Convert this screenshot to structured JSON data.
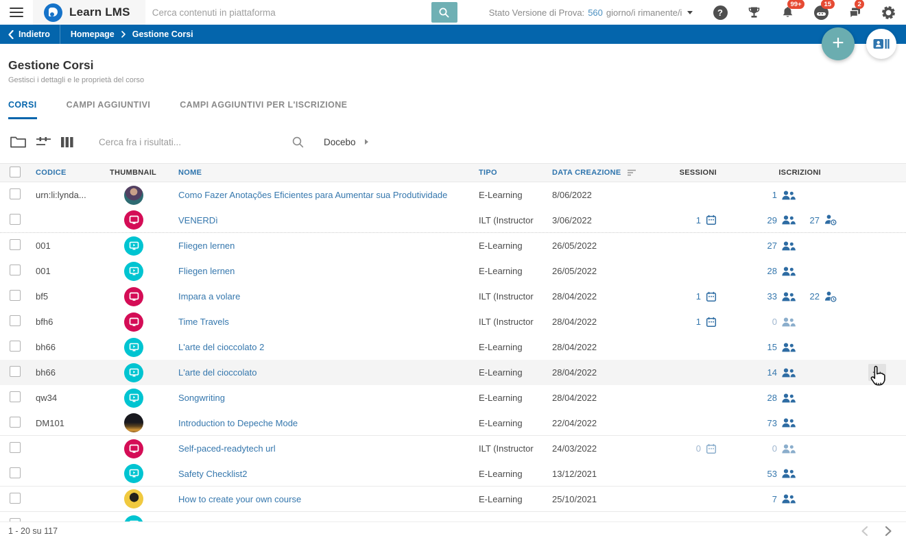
{
  "topbar": {
    "logo_text": "Learn LMS",
    "search_placeholder": "Cerca contenuti in piattaforma",
    "trial": {
      "prefix": "Stato Versione di Prova:",
      "days": "560",
      "suffix": "giorno/i rimanente/i"
    },
    "badges": {
      "notifications": "99+",
      "assistant": "15",
      "messages": "2"
    },
    "help_glyph": "?"
  },
  "breadcrumb": {
    "back": "Indietro",
    "items": [
      "Homepage",
      "Gestione Corsi"
    ]
  },
  "page": {
    "title": "Gestione Corsi",
    "subtitle": "Gestisci i dettagli e le proprietà del corso"
  },
  "tabs": [
    {
      "label": "CORSI",
      "active": true
    },
    {
      "label": "CAMPI AGGIUNTIVI",
      "active": false
    },
    {
      "label": "CAMPI AGGIUNTIVI PER L'ISCRIZIONE",
      "active": false
    }
  ],
  "toolbar": {
    "search_placeholder": "Cerca fra i risultati...",
    "folder": "Docebo"
  },
  "table": {
    "columns": [
      {
        "label": "CODICE",
        "accent": true
      },
      {
        "label": "THUMBNAIL",
        "accent": false
      },
      {
        "label": "NOME",
        "accent": true
      },
      {
        "label": "TIPO",
        "accent": true
      },
      {
        "label": "DATA CREAZIONE",
        "accent": true,
        "sorted": true
      },
      {
        "label": "SESSIONI",
        "accent": false
      },
      {
        "label": "ISCRIZIONI",
        "accent": false
      }
    ],
    "rows": [
      {
        "code": "urn:li:lynda...",
        "thumb": "photo-woman",
        "name": "Como Fazer Anotações Eficientes para Aumentar sua Produtividade",
        "tipo": "E-Learning",
        "created": "8/06/2022",
        "sessions": null,
        "enrollments": 1,
        "waiting": null
      },
      {
        "code": "",
        "thumb": "ilt",
        "name": "VENERDì",
        "tipo": "ILT (Instructor",
        "created": "3/06/2022",
        "sessions": 1,
        "enrollments": 29,
        "waiting": 27,
        "divider": "dotted"
      },
      {
        "code": "001",
        "thumb": "elearning",
        "name": "Fliegen lernen",
        "tipo": "E-Learning",
        "created": "26/05/2022",
        "sessions": null,
        "enrollments": 27,
        "waiting": null
      },
      {
        "code": "001",
        "thumb": "elearning",
        "name": "Fliegen lernen",
        "tipo": "E-Learning",
        "created": "26/05/2022",
        "sessions": null,
        "enrollments": 28,
        "waiting": null
      },
      {
        "code": "bf5",
        "thumb": "ilt",
        "name": "Impara a volare",
        "tipo": "ILT (Instructor",
        "created": "28/04/2022",
        "sessions": 1,
        "enrollments": 33,
        "waiting": 22
      },
      {
        "code": "bfh6",
        "thumb": "ilt",
        "name": "Time Travels",
        "tipo": "ILT (Instructor",
        "created": "28/04/2022",
        "sessions": 1,
        "enrollments": 0,
        "waiting": null
      },
      {
        "code": "bh66",
        "thumb": "elearning",
        "name": "L'arte del cioccolato 2",
        "tipo": "E-Learning",
        "created": "28/04/2022",
        "sessions": null,
        "enrollments": 15,
        "waiting": null
      },
      {
        "code": "bh66",
        "thumb": "elearning",
        "name": "L'arte del cioccolato",
        "tipo": "E-Learning",
        "created": "28/04/2022",
        "sessions": null,
        "enrollments": 14,
        "waiting": null,
        "hovered": true
      },
      {
        "code": "qw34",
        "thumb": "elearning",
        "name": "Songwriting",
        "tipo": "E-Learning",
        "created": "28/04/2022",
        "sessions": null,
        "enrollments": 28,
        "waiting": null
      },
      {
        "code": "DM101",
        "thumb": "photo-city",
        "name": "Introduction to Depeche Mode",
        "tipo": "E-Learning",
        "created": "22/04/2022",
        "sessions": null,
        "enrollments": 73,
        "waiting": null,
        "divider": "solid"
      },
      {
        "code": "",
        "thumb": "ilt",
        "name": "Self-paced-readytech url",
        "tipo": "ILT (Instructor",
        "created": "24/03/2022",
        "sessions": 0,
        "enrollments": 0,
        "waiting": null
      },
      {
        "code": "",
        "thumb": "elearning",
        "name": "Safety Checklist2",
        "tipo": "E-Learning",
        "created": "13/12/2021",
        "sessions": null,
        "enrollments": 53,
        "waiting": null,
        "divider": "solid"
      },
      {
        "code": "",
        "thumb": "photo-headphones",
        "name": "How to create your own course",
        "tipo": "E-Learning",
        "created": "25/10/2021",
        "sessions": null,
        "enrollments": 7,
        "waiting": null,
        "divider": "solid"
      },
      {
        "code": "",
        "thumb": "elearning",
        "name": "",
        "tipo": "",
        "created": "",
        "sessions": null,
        "enrollments": null,
        "waiting": null,
        "partial": true
      }
    ]
  },
  "footer": {
    "range": "1 - 20 su 117"
  },
  "fab": {
    "add_label": "+"
  },
  "actions_menu_glyph": "...",
  "colors": {
    "brand_blue": "#0465ac",
    "link_blue": "#3577ad",
    "ilt_red": "#d40d56",
    "elearning_cyan": "#00c4d1",
    "teal": "#6fb0b4",
    "badge_red": "#e64a33"
  }
}
